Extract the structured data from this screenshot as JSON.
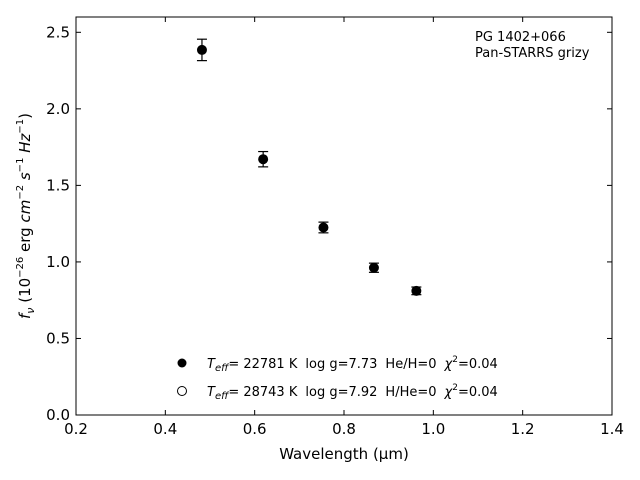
{
  "chart_data": {
    "type": "scatter",
    "xlabel": "Wavelength (μm)",
    "ylabel": "f_ν (10^-26 erg cm^-2 s^-1 Hz^-1)",
    "xlim": [
      0.2,
      1.4
    ],
    "ylim": [
      0.0,
      2.6
    ],
    "x_ticks": [
      "0.2",
      "0.4",
      "0.6",
      "0.8",
      "1.0",
      "1.2",
      "1.4"
    ],
    "y_ticks": [
      "0.0",
      "0.5",
      "1.0",
      "1.5",
      "2.0",
      "2.5"
    ],
    "grid": false,
    "legend_position": "bottom-center",
    "annotations": [
      "PG 1402+066",
      "Pan-STARRS grizy"
    ],
    "series": [
      {
        "marker": "filled-circle",
        "color": "#000000",
        "points": [
          {
            "x": 0.482,
            "y": 2.385,
            "err": 0.07
          },
          {
            "x": 0.619,
            "y": 1.671,
            "err": 0.05
          },
          {
            "x": 0.754,
            "y": 1.225,
            "err": 0.035
          },
          {
            "x": 0.867,
            "y": 0.962,
            "err": 0.03
          },
          {
            "x": 0.962,
            "y": 0.811,
            "err": 0.025
          }
        ]
      },
      {
        "marker": "open-circle",
        "color": "#000000",
        "points": []
      }
    ],
    "legend": [
      {
        "teff": "= 22781 K",
        "logg": "log g=7.73",
        "comp": "He/H=0",
        "chi2": "=0.04"
      },
      {
        "teff": "= 28743 K",
        "logg": "log g=7.92",
        "comp": "H/He=0",
        "chi2": "=0.04"
      }
    ]
  }
}
